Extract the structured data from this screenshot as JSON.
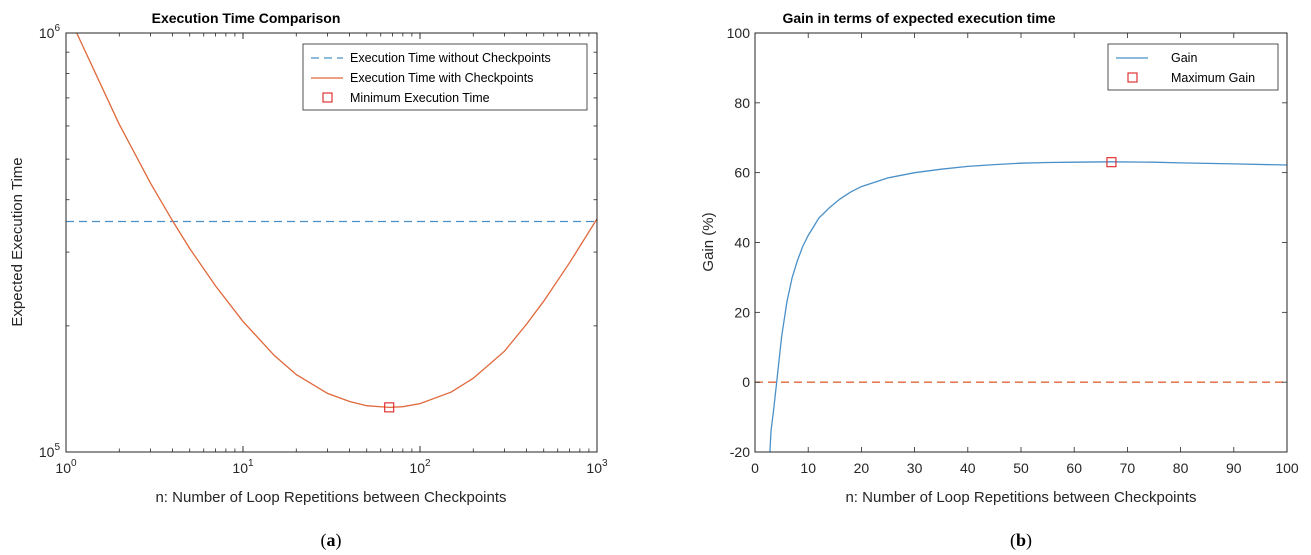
{
  "chart_data": [
    {
      "type": "line",
      "title": "Execution Time Comparison",
      "xlabel": "n: Number of Loop Repetitions between Checkpoints",
      "ylabel": "Expected Execution Time",
      "xscale": "log",
      "yscale": "log",
      "xlim": [
        1,
        1000
      ],
      "ylim": [
        100000,
        1000000
      ],
      "xticks": [
        {
          "value": 1,
          "base": "10",
          "exp": "0"
        },
        {
          "value": 10,
          "base": "10",
          "exp": "1"
        },
        {
          "value": 100,
          "base": "10",
          "exp": "2"
        },
        {
          "value": 1000,
          "base": "10",
          "exp": "3"
        }
      ],
      "yticks": [
        {
          "value": 100000,
          "base": "10",
          "exp": "5"
        },
        {
          "value": 1000000,
          "base": "10",
          "exp": "6"
        }
      ],
      "legend_position": "top-right",
      "series": [
        {
          "name": "Execution Time without Checkpoints",
          "style": "dashed",
          "color": "#4a90c8",
          "x": [
            1,
            1000
          ],
          "y": [
            355000,
            355000
          ]
        },
        {
          "name": "Execution Time with Checkpoints",
          "style": "solid",
          "color": "#e0683a",
          "x": [
            1.15,
            2,
            3,
            4,
            5,
            7,
            10,
            15,
            20,
            30,
            40,
            50,
            67,
            80,
            100,
            150,
            200,
            300,
            400,
            500,
            700,
            1000
          ],
          "y": [
            1000000,
            605000,
            438000,
            356000,
            306000,
            249000,
            205000,
            170000,
            153000,
            138000,
            132000,
            129000,
            127800,
            128300,
            130500,
            139000,
            150000,
            174000,
            202000,
            229000,
            283000,
            360000
          ]
        }
      ],
      "markers": [
        {
          "name": "Minimum Execution Time",
          "marker": "square",
          "color": "#dd2222",
          "x": 67,
          "y": 127800
        }
      ]
    },
    {
      "type": "line",
      "title": "Gain in terms of expected execution time",
      "xlabel": "n: Number of Loop Repetitions between Checkpoints",
      "ylabel": "Gain (%)",
      "xlim": [
        0,
        100
      ],
      "ylim": [
        -20,
        100
      ],
      "xticks": [
        0,
        10,
        20,
        30,
        40,
        50,
        60,
        70,
        80,
        90,
        100
      ],
      "yticks": [
        -20,
        0,
        20,
        40,
        60,
        80,
        100
      ],
      "legend_position": "top-right",
      "series": [
        {
          "name": "Gain",
          "style": "solid",
          "color": "#4a90c8",
          "x": [
            2.8,
            3,
            3.5,
            4,
            5,
            6,
            7,
            8,
            9,
            10,
            12,
            14,
            16,
            18,
            20,
            25,
            30,
            35,
            40,
            45,
            50,
            55,
            60,
            67,
            75,
            80,
            90,
            100
          ],
          "y": [
            -20,
            -14,
            -8,
            -1,
            13,
            23,
            30,
            35,
            39,
            42,
            47,
            50,
            52.5,
            54.5,
            56,
            58.5,
            60,
            61,
            61.8,
            62.3,
            62.7,
            62.9,
            63,
            63.1,
            63,
            62.8,
            62.5,
            62.2
          ]
        },
        {
          "name": "",
          "style": "dashed",
          "color": "#e0683a",
          "x": [
            0,
            100
          ],
          "y": [
            0,
            0
          ]
        }
      ],
      "markers": [
        {
          "name": "Maximum Gain",
          "marker": "square",
          "color": "#dd2222",
          "x": 67,
          "y": 63
        }
      ]
    }
  ],
  "captions": [
    "a",
    "b"
  ]
}
